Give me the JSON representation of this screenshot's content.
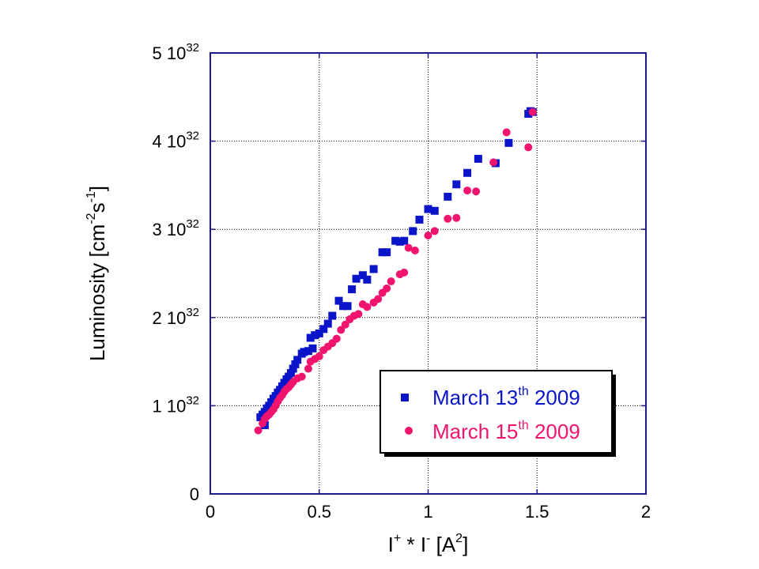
{
  "chart_data": {
    "type": "scatter",
    "title": "",
    "xlabel": {
      "base": "I",
      "sup1": "+",
      "mid": " * I",
      "sup2": "-",
      "tail": " [A",
      "sup3": "2",
      "end": "]"
    },
    "ylabel": {
      "base": "Luminosity [cm",
      "sup1": "-2",
      "mid": "s",
      "sup2": "-1",
      "end": "]"
    },
    "xlim": [
      0,
      2
    ],
    "ylim": [
      0,
      5
    ],
    "y_unit_exponent": "32",
    "x_ticks": [
      {
        "value": 0,
        "label": "0"
      },
      {
        "value": 0.5,
        "label": "0.5"
      },
      {
        "value": 1,
        "label": "1"
      },
      {
        "value": 1.5,
        "label": "1.5"
      },
      {
        "value": 2,
        "label": "2"
      }
    ],
    "y_ticks": [
      {
        "value": 0,
        "label": "0",
        "exp": ""
      },
      {
        "value": 1,
        "label": "1 10",
        "exp": "32"
      },
      {
        "value": 2,
        "label": "2 10",
        "exp": "32"
      },
      {
        "value": 3,
        "label": "3 10",
        "exp": "32"
      },
      {
        "value": 4,
        "label": "4 10",
        "exp": "32"
      },
      {
        "value": 5,
        "label": "5 10",
        "exp": "32"
      }
    ],
    "grid": true,
    "legend_position": "bottom-right",
    "series": [
      {
        "legend": {
          "pre": "March 13",
          "sup": "th",
          "post": " 2009"
        },
        "marker": "square",
        "color": "#0a14c8",
        "x": [
          0.23,
          0.24,
          0.25,
          0.26,
          0.27,
          0.28,
          0.29,
          0.3,
          0.31,
          0.32,
          0.33,
          0.34,
          0.35,
          0.36,
          0.37,
          0.38,
          0.39,
          0.4,
          0.42,
          0.43,
          0.45,
          0.46,
          0.47,
          0.48,
          0.5,
          0.52,
          0.54,
          0.56,
          0.59,
          0.61,
          0.63,
          0.65,
          0.67,
          0.7,
          0.72,
          0.75,
          0.79,
          0.81,
          0.85,
          0.87,
          0.89,
          0.93,
          0.96,
          1.0,
          1.03,
          1.09,
          1.13,
          1.18,
          1.23,
          1.31,
          1.37,
          1.46,
          1.47,
          1.48,
          0.25
        ],
        "y": [
          0.87,
          0.9,
          0.93,
          0.97,
          1.0,
          1.04,
          1.08,
          1.11,
          1.15,
          1.18,
          1.22,
          1.26,
          1.3,
          1.33,
          1.37,
          1.42,
          1.47,
          1.52,
          1.59,
          1.61,
          1.62,
          1.77,
          1.65,
          1.8,
          1.82,
          1.87,
          1.93,
          2.02,
          2.19,
          2.13,
          2.13,
          2.32,
          2.44,
          2.48,
          2.43,
          2.55,
          2.74,
          2.74,
          2.87,
          2.86,
          2.87,
          2.98,
          3.11,
          3.23,
          3.21,
          3.37,
          3.51,
          3.64,
          3.8,
          3.75,
          3.98,
          4.31,
          4.34,
          4.33,
          0.78
        ]
      },
      {
        "legend": {
          "pre": "March 15",
          "sup": "th",
          "post": " 2009"
        },
        "marker": "circle",
        "color": "#f0146e",
        "x": [
          0.22,
          0.24,
          0.25,
          0.26,
          0.27,
          0.28,
          0.29,
          0.3,
          0.31,
          0.32,
          0.33,
          0.34,
          0.35,
          0.36,
          0.37,
          0.38,
          0.4,
          0.42,
          0.45,
          0.46,
          0.48,
          0.5,
          0.52,
          0.54,
          0.56,
          0.58,
          0.6,
          0.62,
          0.64,
          0.66,
          0.68,
          0.7,
          0.72,
          0.75,
          0.77,
          0.79,
          0.81,
          0.83,
          0.87,
          0.89,
          0.91,
          0.94,
          1.0,
          1.03,
          1.09,
          1.13,
          1.18,
          1.22,
          1.3,
          1.36,
          1.46,
          1.48
        ],
        "y": [
          0.72,
          0.8,
          0.85,
          0.88,
          0.9,
          0.93,
          0.96,
          1.0,
          1.05,
          1.09,
          1.12,
          1.16,
          1.19,
          1.21,
          1.24,
          1.27,
          1.31,
          1.33,
          1.42,
          1.5,
          1.53,
          1.56,
          1.63,
          1.67,
          1.71,
          1.76,
          1.86,
          1.92,
          1.98,
          2.02,
          2.04,
          2.15,
          2.12,
          2.17,
          2.21,
          2.28,
          2.33,
          2.41,
          2.49,
          2.51,
          2.79,
          2.76,
          2.93,
          2.98,
          3.12,
          3.13,
          3.44,
          3.43,
          3.76,
          4.1,
          3.93,
          4.33
        ]
      }
    ]
  }
}
